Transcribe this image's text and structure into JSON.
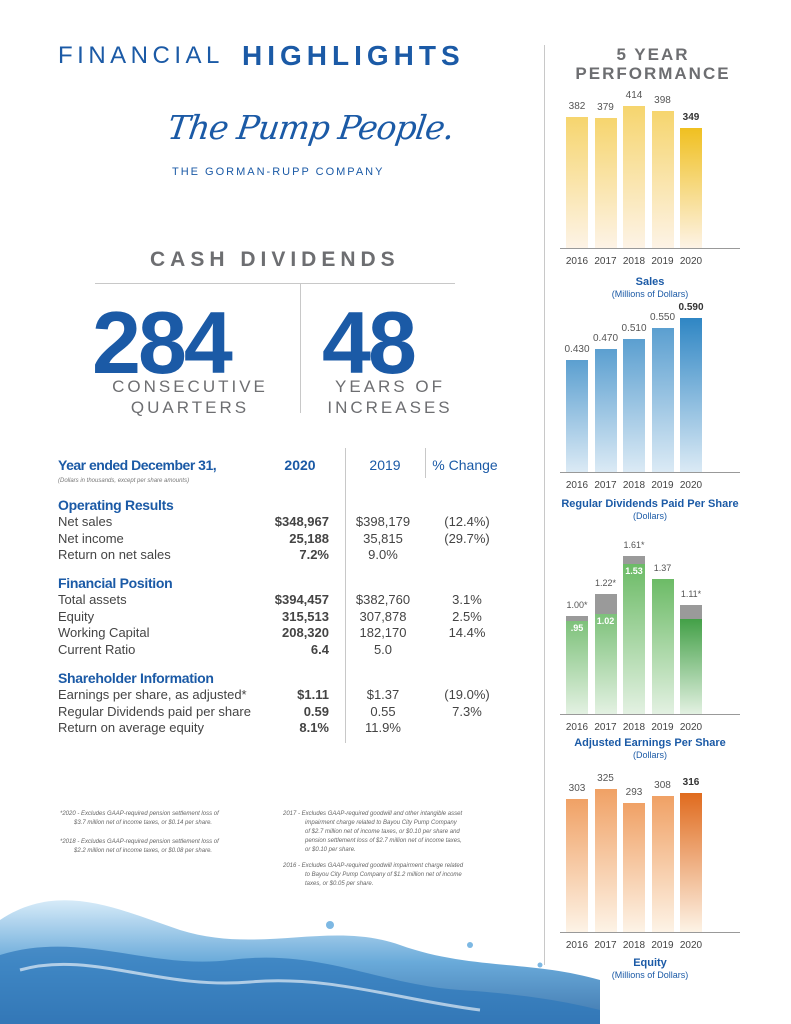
{
  "header": {
    "title_light": "FINANCIAL",
    "title_bold": "HIGHLIGHTS",
    "perf_line1": "5 YEAR",
    "perf_line2": "PERFORMANCE"
  },
  "logo": {
    "script": "The Pump People.",
    "company": "THE GORMAN-RUPP COMPANY"
  },
  "dividends": {
    "heading": "CASH DIVIDENDS",
    "quarters_value": "284",
    "quarters_label1": "CONSECUTIVE",
    "quarters_label2": "QUARTERS",
    "years_value": "48",
    "years_label1": "YEARS OF",
    "years_label2": "INCREASES"
  },
  "table": {
    "heading": "Year ended December 31,",
    "subheading": "(Dollars in thousands, except per share amounts)",
    "col_2020": "2020",
    "col_2019": "2019",
    "col_change": "% Change",
    "sections": [
      {
        "title": "Operating Results",
        "rows": [
          {
            "label": "Net sales",
            "v2020": "$348,967",
            "v2019": "$398,179",
            "change": "(12.4%)"
          },
          {
            "label": "Net income",
            "v2020": "25,188",
            "v2019": "35,815",
            "change": "(29.7%)"
          },
          {
            "label": "Return on net sales",
            "v2020": "7.2%",
            "v2019": "9.0%",
            "change": ""
          }
        ]
      },
      {
        "title": "Financial Position",
        "rows": [
          {
            "label": "Total assets",
            "v2020": "$394,457",
            "v2019": "$382,760",
            "change": "3.1%"
          },
          {
            "label": "Equity",
            "v2020": "315,513",
            "v2019": "307,878",
            "change": "2.5%"
          },
          {
            "label": "Working Capital",
            "v2020": "208,320",
            "v2019": "182,170",
            "change": "14.4%"
          },
          {
            "label": "Current Ratio",
            "v2020": "6.4",
            "v2019": "5.0",
            "change": ""
          }
        ]
      },
      {
        "title": "Shareholder Information",
        "rows": [
          {
            "label": "Earnings per share, as adjusted*",
            "v2020": "$1.11",
            "v2019": "$1.37",
            "change": "(19.0%)"
          },
          {
            "label": "Regular Dividends paid per share",
            "v2020": "0.59",
            "v2019": "0.55",
            "change": "7.3%"
          },
          {
            "label": "Return on average equity",
            "v2020": "8.1%",
            "v2019": "11.9%",
            "change": ""
          }
        ]
      }
    ]
  },
  "footnotes": {
    "left1_a": "*2020 - Excludes GAAP-required pension settlement loss of",
    "left1_b": "$3.7 million net of income taxes, or $0.14 per share.",
    "left2_a": "*2018 - Excludes GAAP-required pension settlement loss of",
    "left2_b": "$2.2 million net of income taxes, or $0.08 per share.",
    "right1_a": "2017 - Excludes GAAP-required goodwill and other intangible asset",
    "right1_b": "impairment charge related to Bayou City Pump Company",
    "right1_c": "of $2.7 million net of income taxes, or $0.10 per share and",
    "right1_d": "pension settlement loss of $2.7 million net of income taxes,",
    "right1_e": "or $0.10 per share.",
    "right2_a": "2016 - Excludes GAAP-required goodwill impairment charge related",
    "right2_b": "to Bayou City Pump Company of $1.2 million net of income",
    "right2_c": "taxes, or $0.05 per share."
  },
  "chart_data": [
    {
      "type": "bar",
      "title": "Sales",
      "subtitle": "(Millions of Dollars)",
      "categories": [
        "2016",
        "2017",
        "2018",
        "2019",
        "2020"
      ],
      "values": [
        382,
        379,
        414,
        398,
        349
      ],
      "labels": [
        "382",
        "379",
        "414",
        "398",
        "349"
      ],
      "colors": [
        "#f6d56e",
        "#f6d56e",
        "#f6d56e",
        "#f6d56e",
        "#f0c020"
      ]
    },
    {
      "type": "bar",
      "title": "Regular Dividends Paid Per Share",
      "subtitle": "(Dollars)",
      "categories": [
        "2016",
        "2017",
        "2018",
        "2019",
        "2020"
      ],
      "values": [
        0.43,
        0.47,
        0.51,
        0.55,
        0.59
      ],
      "labels": [
        "0.430",
        "0.470",
        "0.510",
        "0.550",
        "0.590"
      ],
      "colors": [
        "#5b9fd0",
        "#5b9fd0",
        "#5b9fd0",
        "#5b9fd0",
        "#2f86c4"
      ]
    },
    {
      "type": "bar",
      "title": "Adjusted Earnings Per Share",
      "subtitle": "(Dollars)",
      "categories": [
        "2016",
        "2017",
        "2018",
        "2019",
        "2020"
      ],
      "series": [
        {
          "values": [
            0.95,
            1.02,
            1.53,
            1.37,
            0.97
          ]
        },
        {
          "values": [
            1.0,
            1.22,
            1.61,
            1.37,
            1.11
          ]
        }
      ],
      "gaap_labels": [
        ".95",
        "1.02",
        "1.53",
        "",
        ""
      ],
      "adjusted_labels": [
        "1.00*",
        "1.22*",
        "1.61*",
        "1.37",
        "1.11*"
      ],
      "colors": [
        "#7dc17a",
        "#7dc17a",
        "#6cbb66",
        "#6cbb66",
        "#43a047"
      ]
    },
    {
      "type": "bar",
      "title": "Equity",
      "subtitle": "(Millions of Dollars)",
      "categories": [
        "2016",
        "2017",
        "2018",
        "2019",
        "2020"
      ],
      "values": [
        303,
        325,
        293,
        308,
        316
      ],
      "labels": [
        "303",
        "325",
        "293",
        "308",
        "316"
      ],
      "colors": [
        "#f0a165",
        "#f0a165",
        "#f0a165",
        "#f0a165",
        "#e06b1e"
      ]
    }
  ]
}
